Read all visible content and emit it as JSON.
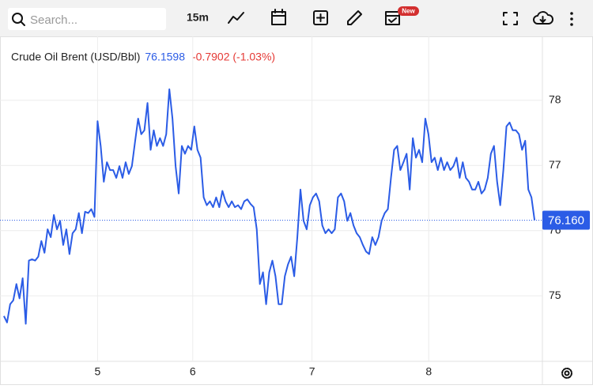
{
  "toolbar": {
    "search_placeholder": "Search...",
    "interval": "15m",
    "badge": "New"
  },
  "chart_data": {
    "type": "line",
    "title": "Crude Oil Brent (USD/Bbl)",
    "last_price": "76.1598",
    "change": "-0.7902 (-1.03%)",
    "color": "#2b5ce6",
    "values": [
      74.69,
      74.59,
      74.87,
      74.93,
      75.18,
      74.96,
      75.27,
      74.57,
      75.54,
      75.56,
      75.54,
      75.6,
      75.84,
      75.66,
      76.02,
      75.9,
      76.24,
      76.02,
      76.15,
      75.78,
      76.02,
      75.64,
      75.96,
      76.02,
      76.27,
      75.96,
      76.29,
      76.27,
      76.33,
      76.21,
      77.68,
      77.3,
      76.75,
      77.05,
      76.93,
      76.93,
      76.81,
      76.99,
      76.81,
      77.05,
      76.87,
      76.99,
      77.36,
      77.72,
      77.48,
      77.54,
      77.96,
      77.24,
      77.54,
      77.3,
      77.42,
      77.3,
      77.48,
      78.17,
      77.72,
      76.99,
      76.57,
      77.3,
      77.18,
      77.3,
      77.24,
      77.6,
      77.24,
      77.12,
      76.51,
      76.39,
      76.45,
      76.36,
      76.51,
      76.36,
      76.61,
      76.45,
      76.36,
      76.45,
      76.36,
      76.39,
      76.33,
      76.45,
      76.48,
      76.41,
      76.36,
      76.02,
      75.18,
      75.36,
      74.87,
      75.36,
      75.54,
      75.3,
      74.87,
      74.87,
      75.3,
      75.48,
      75.6,
      75.3,
      75.9,
      76.63,
      76.15,
      76.02,
      76.39,
      76.51,
      76.57,
      76.45,
      76.08,
      75.96,
      76.02,
      75.96,
      76.02,
      76.51,
      76.57,
      76.45,
      76.15,
      76.27,
      76.08,
      75.96,
      75.9,
      75.78,
      75.68,
      75.64,
      75.9,
      75.78,
      75.9,
      76.15,
      76.27,
      76.33,
      76.81,
      77.24,
      77.3,
      76.93,
      77.05,
      77.18,
      76.63,
      77.42,
      77.12,
      77.24,
      77.05,
      77.72,
      77.48,
      77.05,
      77.12,
      76.93,
      77.12,
      76.93,
      77.05,
      76.93,
      76.99,
      77.12,
      76.81,
      77.05,
      76.81,
      76.75,
      76.63,
      76.63,
      76.75,
      76.57,
      76.63,
      76.81,
      77.18,
      77.3,
      76.75,
      76.39,
      76.93,
      77.6,
      77.66,
      77.54,
      77.54,
      77.48,
      77.24,
      77.38,
      76.63,
      76.51,
      76.16
    ],
    "xlim": [
      -1,
      172
    ],
    "xticks": [
      {
        "value": 30,
        "label": "5"
      },
      {
        "value": 60.5,
        "label": "6"
      },
      {
        "value": 98.7,
        "label": "7"
      },
      {
        "value": 136.1,
        "label": "8"
      }
    ],
    "ylim": [
      74,
      79
    ],
    "yticks": [
      75,
      76,
      77,
      78
    ],
    "price_line": {
      "value": 76.16,
      "label": "76.160"
    },
    "grid": true
  }
}
